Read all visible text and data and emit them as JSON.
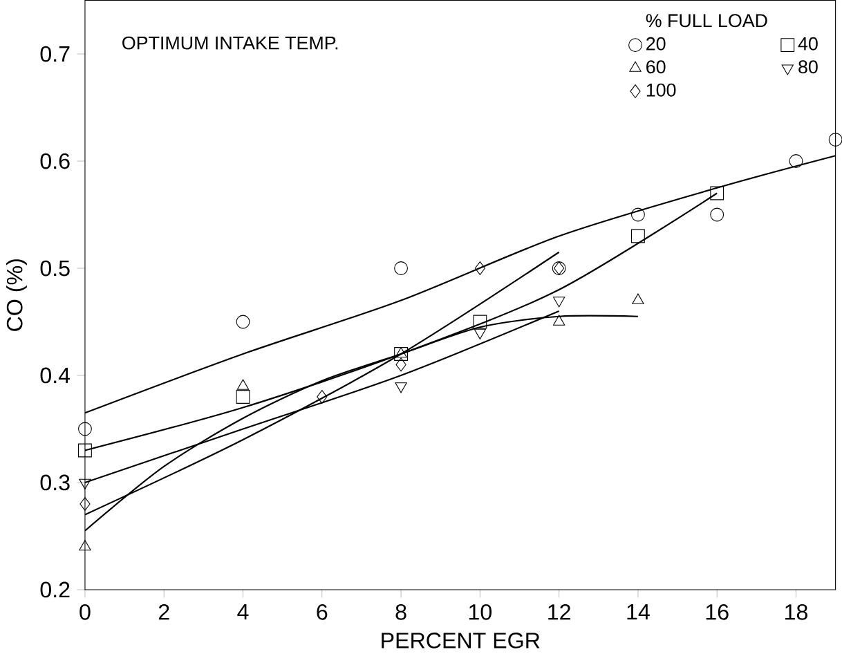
{
  "chart_data": {
    "type": "scatter",
    "xlabel": "PERCENT EGR",
    "ylabel": "CO (%)",
    "legend_title": "% FULL LOAD",
    "annotations": [
      "OPTIMUM INTAKE TEMP."
    ],
    "xlim": [
      0,
      19
    ],
    "ylim": [
      0.2,
      0.75
    ],
    "xticks": [
      0,
      2,
      4,
      6,
      8,
      10,
      12,
      14,
      16,
      18
    ],
    "yticks": [
      0.2,
      0.3,
      0.4,
      0.5,
      0.6,
      0.7
    ],
    "grid": false,
    "legend": "top right",
    "series": [
      {
        "name": "20",
        "color": "#000000",
        "marker": "circle",
        "x": [
          0,
          4,
          8,
          12,
          14,
          16,
          18,
          19
        ],
        "values": [
          0.35,
          0.45,
          0.5,
          0.5,
          0.55,
          0.55,
          0.6,
          0.62
        ]
      },
      {
        "name": "40",
        "color": "#000000",
        "marker": "square",
        "x": [
          0,
          4,
          8,
          10,
          14,
          16
        ],
        "values": [
          0.33,
          0.38,
          0.42,
          0.45,
          0.53,
          0.57
        ]
      },
      {
        "name": "60",
        "color": "#000000",
        "marker": "triangle",
        "x": [
          0,
          4,
          8,
          12,
          14
        ],
        "values": [
          0.24,
          0.39,
          0.42,
          0.45,
          0.47
        ]
      },
      {
        "name": "80",
        "color": "#000000",
        "marker": "triangle down",
        "x": [
          0,
          8,
          10,
          12
        ],
        "values": [
          0.3,
          0.39,
          0.44,
          0.47
        ]
      },
      {
        "name": "100",
        "color": "#000000",
        "marker": "diamond",
        "x": [
          0,
          6,
          8,
          10,
          12
        ],
        "values": [
          0.28,
          0.38,
          0.41,
          0.5,
          0.5
        ]
      },
      {
        "type": "line",
        "color": "#000000",
        "marker": "none",
        "x": [
          0,
          4,
          8,
          12,
          16,
          19
        ],
        "values": [
          0.365,
          0.42,
          0.47,
          0.53,
          0.575,
          0.605
        ]
      },
      {
        "type": "line",
        "color": "#000000",
        "marker": "none",
        "x": [
          0,
          4,
          8,
          12,
          16
        ],
        "values": [
          0.33,
          0.37,
          0.42,
          0.48,
          0.57
        ]
      },
      {
        "type": "line",
        "color": "#000000",
        "marker": "none",
        "x": [
          0,
          2,
          4,
          6,
          8,
          10,
          12,
          14
        ],
        "values": [
          0.255,
          0.315,
          0.36,
          0.395,
          0.42,
          0.445,
          0.455,
          0.455
        ]
      },
      {
        "type": "line",
        "color": "#000000",
        "marker": "none",
        "x": [
          0,
          4,
          8,
          12
        ],
        "values": [
          0.3,
          0.35,
          0.4,
          0.46
        ]
      },
      {
        "type": "line",
        "color": "#000000",
        "marker": "none",
        "x": [
          0,
          4,
          8,
          12
        ],
        "values": [
          0.27,
          0.34,
          0.42,
          0.515
        ]
      }
    ]
  }
}
